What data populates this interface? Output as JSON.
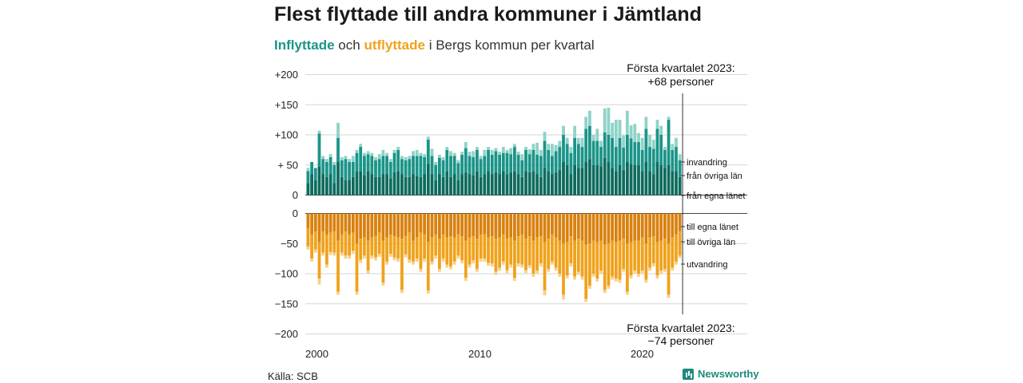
{
  "title": "Flest flyttade till andra kommuner i Jämtland",
  "subtitle": {
    "in_word": "Inflyttade",
    "and_word": "och",
    "out_word": "utflyttade",
    "rest": "i Bergs kommun per kvartal"
  },
  "annotations": {
    "top_line1": "Första kvartalet 2023:",
    "top_line2": "+68 personer",
    "bottom_line1": "Första kvartalet 2023:",
    "bottom_line2": "−74 personer"
  },
  "source": "Källa: SCB",
  "brand": "Newsworthy",
  "colors": {
    "in_dark": "#0e6b5e",
    "in_mid": "#1b9488",
    "in_light": "#8fd3c8",
    "out_dark": "#d9810f",
    "out_mid": "#f0a21c",
    "out_light": "#f8d08a"
  },
  "chart_data": {
    "type": "bar",
    "stacked": true,
    "x_start": "2000-Q1",
    "x_ticks": [
      "2000",
      "2010",
      "2020"
    ],
    "inflow_axis": {
      "ticks": [
        "+200",
        "+150",
        "+100",
        "+ 50",
        "0"
      ],
      "ylim": [
        0,
        200
      ]
    },
    "outflow_axis": {
      "ticks": [
        "0",
        "−50",
        "−100",
        "−150",
        "−200"
      ],
      "ylim": [
        -200,
        0
      ]
    },
    "inflow_series_labels": [
      "invandring",
      "från övriga län",
      "från egna länet"
    ],
    "outflow_series_labels": [
      "till egna länet",
      "till övriga län",
      "utvandring"
    ],
    "inflow": {
      "egna": [
        20,
        35,
        25,
        47,
        35,
        30,
        35,
        20,
        55,
        30,
        25,
        25,
        30,
        40,
        40,
        33,
        40,
        35,
        30,
        30,
        35,
        35,
        28,
        38,
        40,
        35,
        30,
        30,
        35,
        32,
        30,
        35,
        52,
        35,
        25,
        35,
        30,
        40,
        30,
        35,
        25,
        35,
        38,
        35,
        33,
        40,
        30,
        35,
        40,
        35,
        38,
        35,
        40,
        35,
        38,
        40,
        35,
        30,
        40,
        38,
        40,
        35,
        30,
        45,
        40,
        35,
        38,
        42,
        55,
        50,
        35,
        50,
        45,
        45,
        55,
        60,
        50,
        50,
        48,
        62,
        55,
        45,
        40,
        50,
        42,
        55,
        52,
        50,
        50,
        40,
        55,
        40,
        35,
        55,
        50,
        45,
        50,
        40,
        40,
        30
      ],
      "ovriga": [
        20,
        20,
        20,
        55,
        25,
        25,
        28,
        30,
        40,
        28,
        35,
        30,
        25,
        30,
        40,
        32,
        28,
        30,
        28,
        30,
        30,
        30,
        27,
        32,
        35,
        25,
        28,
        30,
        30,
        33,
        35,
        28,
        40,
        30,
        25,
        27,
        28,
        35,
        35,
        30,
        28,
        32,
        40,
        30,
        30,
        35,
        30,
        30,
        35,
        32,
        35,
        32,
        30,
        35,
        30,
        40,
        32,
        28,
        35,
        30,
        35,
        32,
        35,
        45,
        35,
        30,
        35,
        38,
        45,
        35,
        35,
        45,
        40,
        35,
        55,
        55,
        40,
        40,
        32,
        42,
        45,
        50,
        40,
        45,
        37,
        45,
        42,
        38,
        38,
        35,
        55,
        40,
        42,
        55,
        50,
        30,
        75,
        35,
        40,
        28
      ],
      "invandring": [
        5,
        0,
        0,
        5,
        5,
        5,
        5,
        5,
        25,
        5,
        5,
        5,
        10,
        5,
        5,
        5,
        5,
        5,
        5,
        8,
        10,
        5,
        5,
        5,
        5,
        5,
        5,
        5,
        8,
        10,
        5,
        5,
        5,
        12,
        5,
        5,
        5,
        5,
        8,
        5,
        5,
        5,
        10,
        7,
        10,
        5,
        5,
        10,
        5,
        8,
        5,
        5,
        10,
        5,
        10,
        5,
        5,
        10,
        5,
        8,
        10,
        20,
        10,
        15,
        10,
        20,
        10,
        10,
        15,
        10,
        10,
        20,
        10,
        15,
        20,
        25,
        10,
        20,
        10,
        40,
        45,
        25,
        45,
        30,
        20,
        40,
        22,
        30,
        15,
        20,
        20,
        20,
        15,
        15,
        15,
        5,
        5,
        10,
        15,
        10
      ]
    },
    "outflow": {
      "egna": [
        25,
        35,
        30,
        48,
        30,
        35,
        32,
        30,
        45,
        35,
        30,
        35,
        32,
        50,
        42,
        40,
        45,
        40,
        38,
        32,
        45,
        40,
        35,
        38,
        40,
        42,
        38,
        32,
        45,
        40,
        32,
        35,
        48,
        40,
        35,
        42,
        35,
        40,
        38,
        40,
        35,
        38,
        45,
        40,
        38,
        42,
        35,
        35,
        40,
        38,
        42,
        40,
        35,
        42,
        40,
        45,
        38,
        35,
        42,
        38,
        45,
        40,
        38,
        48,
        42,
        35,
        40,
        45,
        50,
        48,
        38,
        45,
        42,
        45,
        52,
        50,
        45,
        48,
        45,
        52,
        50,
        45,
        48,
        45,
        42,
        50,
        48,
        45,
        45,
        40,
        50,
        40,
        38,
        48,
        45,
        42,
        50,
        40,
        35,
        30
      ],
      "ovriga": [
        30,
        40,
        30,
        60,
        35,
        50,
        32,
        35,
        85,
        30,
        40,
        35,
        30,
        80,
        35,
        30,
        50,
        30,
        35,
        35,
        70,
        40,
        32,
        35,
        35,
        85,
        30,
        45,
        35,
        35,
        60,
        40,
        80,
        40,
        35,
        50,
        40,
        45,
        50,
        40,
        35,
        40,
        62,
        45,
        40,
        50,
        40,
        40,
        42,
        45,
        55,
        50,
        45,
        52,
        45,
        62,
        45,
        50,
        52,
        48,
        55,
        55,
        45,
        80,
        50,
        45,
        50,
        55,
        85,
        55,
        45,
        60,
        55,
        60,
        90,
        70,
        55,
        60,
        50,
        75,
        70,
        60,
        60,
        65,
        50,
        80,
        55,
        50,
        55,
        55,
        60,
        50,
        45,
        55,
        50,
        50,
        85,
        50,
        45,
        40
      ],
      "utvandring": [
        5,
        5,
        5,
        10,
        5,
        5,
        5,
        5,
        5,
        5,
        5,
        5,
        5,
        5,
        5,
        5,
        5,
        5,
        5,
        5,
        5,
        5,
        5,
        5,
        5,
        5,
        5,
        5,
        5,
        5,
        5,
        5,
        5,
        5,
        5,
        5,
        5,
        5,
        5,
        5,
        5,
        5,
        5,
        5,
        5,
        5,
        5,
        5,
        5,
        5,
        5,
        5,
        5,
        5,
        5,
        5,
        5,
        5,
        5,
        5,
        5,
        5,
        5,
        8,
        5,
        5,
        5,
        5,
        8,
        5,
        5,
        5,
        5,
        5,
        5,
        5,
        5,
        5,
        5,
        5,
        5,
        5,
        5,
        5,
        5,
        5,
        5,
        5,
        5,
        5,
        5,
        5,
        5,
        5,
        5,
        5,
        5,
        5,
        5,
        4
      ]
    }
  }
}
